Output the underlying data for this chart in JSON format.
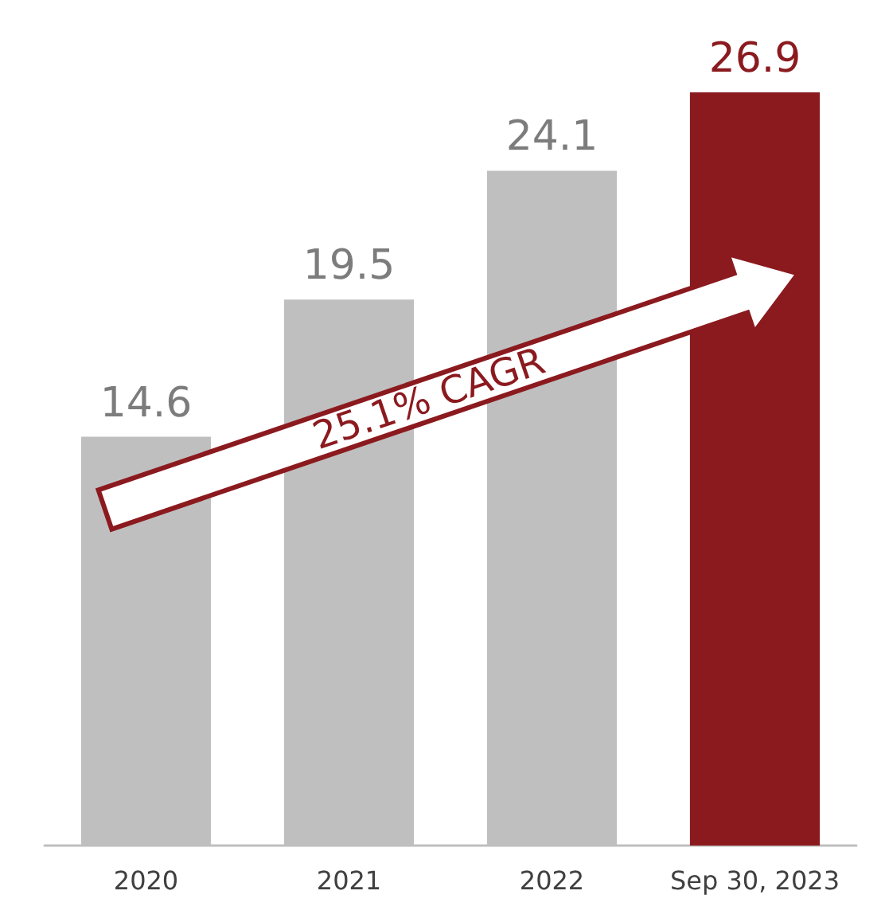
{
  "chart_data": {
    "type": "bar",
    "categories": [
      "2020",
      "2021",
      "2022",
      "Sep 30, 2023"
    ],
    "values": [
      14.6,
      19.5,
      24.1,
      26.9
    ],
    "colors": [
      "#bfbfbf",
      "#bfbfbf",
      "#bfbfbf",
      "#8b1a1f"
    ],
    "data_labels": true,
    "annotations": [
      "25.1% CAGR"
    ]
  }
}
